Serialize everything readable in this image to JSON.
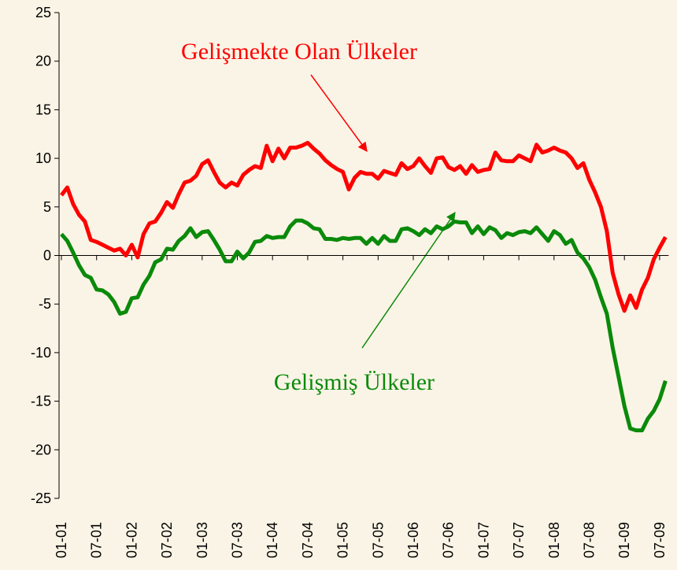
{
  "chart_data": {
    "type": "line",
    "categories": [
      "01-01",
      null,
      null,
      null,
      null,
      null,
      "07-01",
      null,
      null,
      null,
      null,
      null,
      "01-02",
      null,
      null,
      null,
      null,
      null,
      "07-02",
      null,
      null,
      null,
      null,
      null,
      "01-03",
      null,
      null,
      null,
      null,
      null,
      "07-03",
      null,
      null,
      null,
      null,
      null,
      "01-04",
      null,
      null,
      null,
      null,
      null,
      "07-04",
      null,
      null,
      null,
      null,
      null,
      "01-05",
      null,
      null,
      null,
      null,
      null,
      "07-05",
      null,
      null,
      null,
      null,
      null,
      "01-06",
      null,
      null,
      null,
      null,
      null,
      "07-06",
      null,
      null,
      null,
      null,
      null,
      "01-07",
      null,
      null,
      null,
      null,
      null,
      "07-07",
      null,
      null,
      null,
      null,
      null,
      "01-08",
      null,
      null,
      null,
      null,
      null,
      "07-08",
      null,
      null,
      null,
      null,
      null,
      "01-09",
      null,
      null,
      null,
      null,
      null,
      "07-09",
      null
    ],
    "series": [
      {
        "name": "Gelişmekte Olan Ülkeler",
        "color": "#ff0000",
        "values": [
          6.2,
          7,
          5.3,
          4.2,
          3.5,
          1.6,
          1.4,
          1.1,
          0.8,
          0.5,
          0.7,
          0,
          1.1,
          -0.2,
          2.2,
          3.3,
          3.5,
          4.4,
          5.5,
          4.9,
          6.3,
          7.5,
          7.7,
          8.2,
          9.4,
          9.8,
          8.6,
          7.5,
          7,
          7.5,
          7.2,
          8.3,
          8.8,
          9.2,
          9,
          11.3,
          9.7,
          11,
          10,
          11.1,
          11.1,
          11.3,
          11.6,
          11,
          10.5,
          9.8,
          9.3,
          8.9,
          8.6,
          6.8,
          8,
          8.6,
          8.4,
          8.4,
          7.9,
          8.7,
          8.5,
          8.3,
          9.5,
          8.9,
          9.2,
          10,
          9.2,
          8.5,
          10,
          10.1,
          9.1,
          8.8,
          9.2,
          8.4,
          9.3,
          8.6,
          8.8,
          8.9,
          10.6,
          9.8,
          9.7,
          9.7,
          10.3,
          10,
          9.7,
          11.4,
          10.6,
          10.8,
          11.1,
          10.8,
          10.6,
          10,
          9,
          9.5,
          7.8,
          6.5,
          5,
          2.5,
          -1.8,
          -4,
          -5.7,
          -4.1,
          -5.4,
          -3.5,
          -2.3,
          -0.4,
          0.8,
          1.9
        ]
      },
      {
        "name": "Gelişmiş Ülkeler",
        "color": "#0a8a0a",
        "values": [
          2.2,
          1.5,
          0.3,
          -1,
          -2,
          -2.3,
          -3.5,
          -3.6,
          -4,
          -4.8,
          -6,
          -5.8,
          -4.4,
          -4.3,
          -3,
          -2.1,
          -0.7,
          -0.4,
          0.7,
          0.6,
          1.5,
          2,
          2.8,
          1.9,
          2.4,
          2.5,
          1.6,
          0.6,
          -0.6,
          -0.6,
          0.4,
          -0.3,
          0.3,
          1.4,
          1.5,
          2,
          1.8,
          1.9,
          1.9,
          3,
          3.6,
          3.6,
          3.3,
          2.8,
          2.7,
          1.7,
          1.7,
          1.6,
          1.8,
          1.7,
          1.8,
          1.8,
          1.2,
          1.8,
          1.2,
          2,
          1.5,
          1.5,
          2.7,
          2.8,
          2.5,
          2.1,
          2.7,
          2.3,
          3,
          2.7,
          3,
          3.5,
          3.4,
          3.4,
          2.3,
          3,
          2.2,
          2.9,
          2.6,
          1.8,
          2.3,
          2.1,
          2.4,
          2.5,
          2.3,
          2.9,
          2.2,
          1.5,
          2.5,
          2.1,
          1.2,
          1.6,
          0.3,
          -0.3,
          -1.2,
          -2.5,
          -4.3,
          -6,
          -9.5,
          -12.5,
          -15.5,
          -17.8,
          -18,
          -18,
          -16.8,
          -16,
          -14.8,
          -12.9
        ]
      }
    ],
    "ylim": [
      -25,
      25
    ],
    "yticks": [
      -25,
      -20,
      -15,
      -10,
      -5,
      0,
      5,
      10,
      15,
      20,
      25
    ]
  }
}
